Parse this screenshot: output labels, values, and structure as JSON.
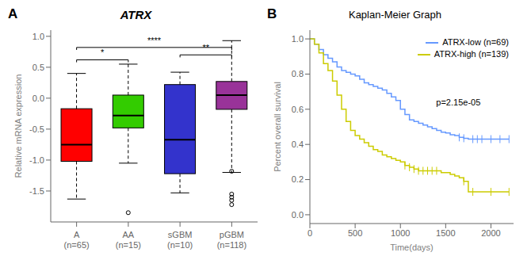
{
  "chart_data": [
    {
      "type": "box",
      "panel_label": "A",
      "title": "ATRX",
      "ylabel": "Relative mRNA expression",
      "categories": [
        "A\n(n=65)",
        "AA\n(n=15)",
        "sGBM\n(n=10)",
        "pGBM\n(n=118)"
      ],
      "colors": [
        "#FF0000",
        "#33CC00",
        "#3333CC",
        "#993399"
      ],
      "medians": [
        -0.75,
        -0.28,
        -0.67,
        0.05
      ],
      "q1": [
        -1.02,
        -0.48,
        -1.22,
        -0.18
      ],
      "q3": [
        -0.17,
        0.05,
        0.22,
        0.27
      ],
      "whislo": [
        -1.63,
        -1.05,
        -1.53,
        -1.2
      ],
      "whishi": [
        0.4,
        0.55,
        0.42,
        0.93
      ],
      "outliers": [
        [],
        [
          -1.85
        ],
        [],
        [
          -1.18,
          -1.55,
          -1.6,
          -1.65,
          -1.72
        ]
      ],
      "ylim": [
        -2.0,
        1.1
      ],
      "yticks": [
        -1.5,
        {
          "value": -1.0,
          "label": "-1.0"
        },
        -0.5,
        {
          "value": 0.0,
          "label": "0.0"
        },
        0.5,
        {
          "value": 1.0,
          "label": "1.0"
        }
      ],
      "significance": [
        {
          "from": "A\n(n=65)",
          "to": "AA\n(n=15)",
          "y": 0.62,
          "label": "*"
        },
        {
          "from": "A\n(n=65)",
          "to": "pGBM\n(n=118)",
          "y": 0.82,
          "label": "****"
        },
        {
          "from": "sGBM\n(n=10)",
          "to": "pGBM\n(n=118)",
          "y": 0.7,
          "label": "**"
        }
      ],
      "grid": false
    },
    {
      "type": "step",
      "panel_label": "B",
      "title": "Kaplan-Meier Graph",
      "xlabel": "Time(days)",
      "ylabel": "Percent overall survival",
      "xlim": [
        0,
        2250
      ],
      "ylim": [
        -0.05,
        1.05
      ],
      "xticks": [
        0,
        500,
        1000,
        1500,
        2000
      ],
      "yticks": [
        {
          "value": 0.0,
          "label": "0.0"
        },
        0.2,
        0.4,
        0.6,
        0.8,
        {
          "value": 1.0,
          "label": "1.0"
        }
      ],
      "x": [
        0,
        50,
        100,
        150,
        200,
        250,
        300,
        350,
        400,
        450,
        500,
        550,
        600,
        650,
        700,
        750,
        800,
        850,
        900,
        950,
        1000,
        1050,
        1100,
        1150,
        1200,
        1250,
        1300,
        1350,
        1400,
        1450,
        1500,
        1550,
        1600,
        1650,
        1700,
        1750,
        1800,
        1850,
        1900,
        1950,
        2000,
        2050,
        2100,
        2150,
        2200
      ],
      "series": [
        {
          "name": "ATRX-low (n=69)",
          "color": "#6699FF",
          "values": [
            1.0,
            0.97,
            0.94,
            0.91,
            0.89,
            0.87,
            0.84,
            0.82,
            0.81,
            0.8,
            0.79,
            0.77,
            0.75,
            0.74,
            0.73,
            0.72,
            0.71,
            0.69,
            0.67,
            0.65,
            0.6,
            0.57,
            0.54,
            0.53,
            0.52,
            0.51,
            0.5,
            0.49,
            0.48,
            0.47,
            0.465,
            0.455,
            0.45,
            0.44,
            0.435,
            0.43,
            0.43,
            0.43,
            0.43,
            0.43,
            0.43,
            0.43,
            0.43,
            0.43,
            0.43
          ],
          "censors": [
            1650,
            1700,
            1800,
            1850,
            1900,
            2000,
            2100,
            2200
          ]
        },
        {
          "name": "ATRX-high (n=139)",
          "color": "#CCCC00",
          "values": [
            1.0,
            0.97,
            0.92,
            0.86,
            0.82,
            0.76,
            0.68,
            0.6,
            0.53,
            0.48,
            0.45,
            0.43,
            0.41,
            0.39,
            0.37,
            0.36,
            0.34,
            0.33,
            0.32,
            0.31,
            0.3,
            0.28,
            0.27,
            0.26,
            0.25,
            0.25,
            0.25,
            0.25,
            0.25,
            0.24,
            0.24,
            0.23,
            0.22,
            0.21,
            0.19,
            0.13,
            0.13,
            0.13,
            0.13,
            0.13,
            0.13,
            0.13,
            0.13,
            0.13,
            0.13
          ],
          "censors": [
            1050,
            1100,
            1150,
            1200,
            1250,
            1300,
            1350,
            1400,
            1700,
            1800,
            2000,
            2200
          ]
        }
      ],
      "annotations": [
        {
          "text": "p=2.15e-05"
        }
      ],
      "legend": "upper right",
      "grid": false
    }
  ]
}
